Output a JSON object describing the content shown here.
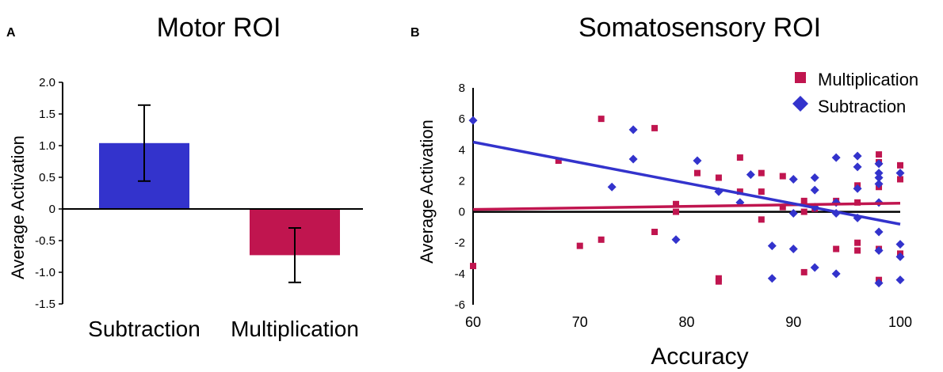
{
  "chart_data": [
    {
      "panel": "A",
      "type": "bar",
      "title": "Motor ROI",
      "ylabel": "Average Activation",
      "xlabel": "",
      "ylim": [
        -1.5,
        2.0
      ],
      "yticks": [
        "2.0",
        "1.5",
        "1.0",
        "0.5",
        "0",
        "-0.5",
        "-1.0",
        "-1.5"
      ],
      "yticks_values": [
        2.0,
        1.5,
        1.0,
        0.5,
        0,
        -0.5,
        -1.0,
        -1.5
      ],
      "categories": [
        "Subtraction",
        "Multiplication"
      ],
      "values": [
        1.04,
        -0.73
      ],
      "errors": [
        0.6,
        0.43
      ],
      "colors": [
        "#3333cc",
        "#c0154f"
      ]
    },
    {
      "panel": "B",
      "type": "scatter",
      "title": "Somatosensory ROI",
      "xlabel": "Accuracy",
      "ylabel": "Average Activation",
      "xlim": [
        60,
        100
      ],
      "ylim": [
        -6,
        8
      ],
      "xticks": [
        "60",
        "70",
        "80",
        "90",
        "100"
      ],
      "xticks_values": [
        60,
        70,
        80,
        90,
        100
      ],
      "yticks": [
        "8",
        "6",
        "4",
        "2",
        "0",
        "-2",
        "-4",
        "-6"
      ],
      "yticks_values": [
        8,
        6,
        4,
        2,
        0,
        -2,
        -4,
        -6
      ],
      "series": [
        {
          "name": "Multiplication",
          "marker": "square",
          "color": "#c0154f",
          "points": [
            [
              60,
              -3.5
            ],
            [
              68,
              3.3
            ],
            [
              70,
              -2.2
            ],
            [
              72,
              -1.8
            ],
            [
              72,
              6.0
            ],
            [
              77,
              5.4
            ],
            [
              77,
              -1.3
            ],
            [
              79,
              0.5
            ],
            [
              79,
              0.0
            ],
            [
              81,
              2.5
            ],
            [
              83,
              2.2
            ],
            [
              83,
              -4.3
            ],
            [
              83,
              -4.5
            ],
            [
              85,
              3.5
            ],
            [
              85,
              1.3
            ],
            [
              87,
              2.5
            ],
            [
              87,
              1.3
            ],
            [
              87,
              -0.5
            ],
            [
              89,
              2.3
            ],
            [
              89,
              0.3
            ],
            [
              91,
              0.7
            ],
            [
              91,
              0.0
            ],
            [
              91,
              -3.9
            ],
            [
              92,
              0.2
            ],
            [
              94,
              0.7
            ],
            [
              94,
              -2.4
            ],
            [
              96,
              1.7
            ],
            [
              96,
              0.6
            ],
            [
              96,
              -2.0
            ],
            [
              96,
              -2.5
            ],
            [
              98,
              3.7
            ],
            [
              98,
              3.2
            ],
            [
              98,
              1.6
            ],
            [
              98,
              -2.4
            ],
            [
              98,
              -4.4
            ],
            [
              100,
              3.0
            ],
            [
              100,
              2.1
            ],
            [
              100,
              -2.7
            ]
          ]
        },
        {
          "name": "Subtraction",
          "marker": "diamond",
          "color": "#3333cc",
          "points": [
            [
              60,
              5.9
            ],
            [
              73,
              1.6
            ],
            [
              75,
              5.3
            ],
            [
              75,
              3.4
            ],
            [
              79,
              -1.8
            ],
            [
              81,
              3.3
            ],
            [
              83,
              1.3
            ],
            [
              85,
              0.6
            ],
            [
              86,
              2.4
            ],
            [
              88,
              -2.2
            ],
            [
              88,
              -4.3
            ],
            [
              90,
              2.1
            ],
            [
              90,
              -0.1
            ],
            [
              90,
              -2.4
            ],
            [
              92,
              2.2
            ],
            [
              92,
              1.4
            ],
            [
              92,
              0.3
            ],
            [
              92,
              -3.6
            ],
            [
              94,
              3.5
            ],
            [
              94,
              0.6
            ],
            [
              94,
              -0.1
            ],
            [
              94,
              -4.0
            ],
            [
              96,
              3.6
            ],
            [
              96,
              2.9
            ],
            [
              96,
              1.5
            ],
            [
              96,
              -0.4
            ],
            [
              98,
              3.1
            ],
            [
              98,
              2.5
            ],
            [
              98,
              2.2
            ],
            [
              98,
              1.8
            ],
            [
              98,
              0.6
            ],
            [
              98,
              -1.3
            ],
            [
              98,
              -2.5
            ],
            [
              98,
              -4.6
            ],
            [
              100,
              2.5
            ],
            [
              100,
              -2.1
            ],
            [
              100,
              -2.9
            ],
            [
              100,
              -4.4
            ]
          ]
        }
      ],
      "trendlines": [
        {
          "name": "Multiplication",
          "color": "#c0154f",
          "from": [
            60,
            0.15
          ],
          "to": [
            100,
            0.55
          ]
        },
        {
          "name": "Subtraction",
          "color": "#3333cc",
          "from": [
            60,
            4.5
          ],
          "to": [
            100,
            -0.8
          ]
        }
      ],
      "legend_position": "top-right"
    }
  ]
}
